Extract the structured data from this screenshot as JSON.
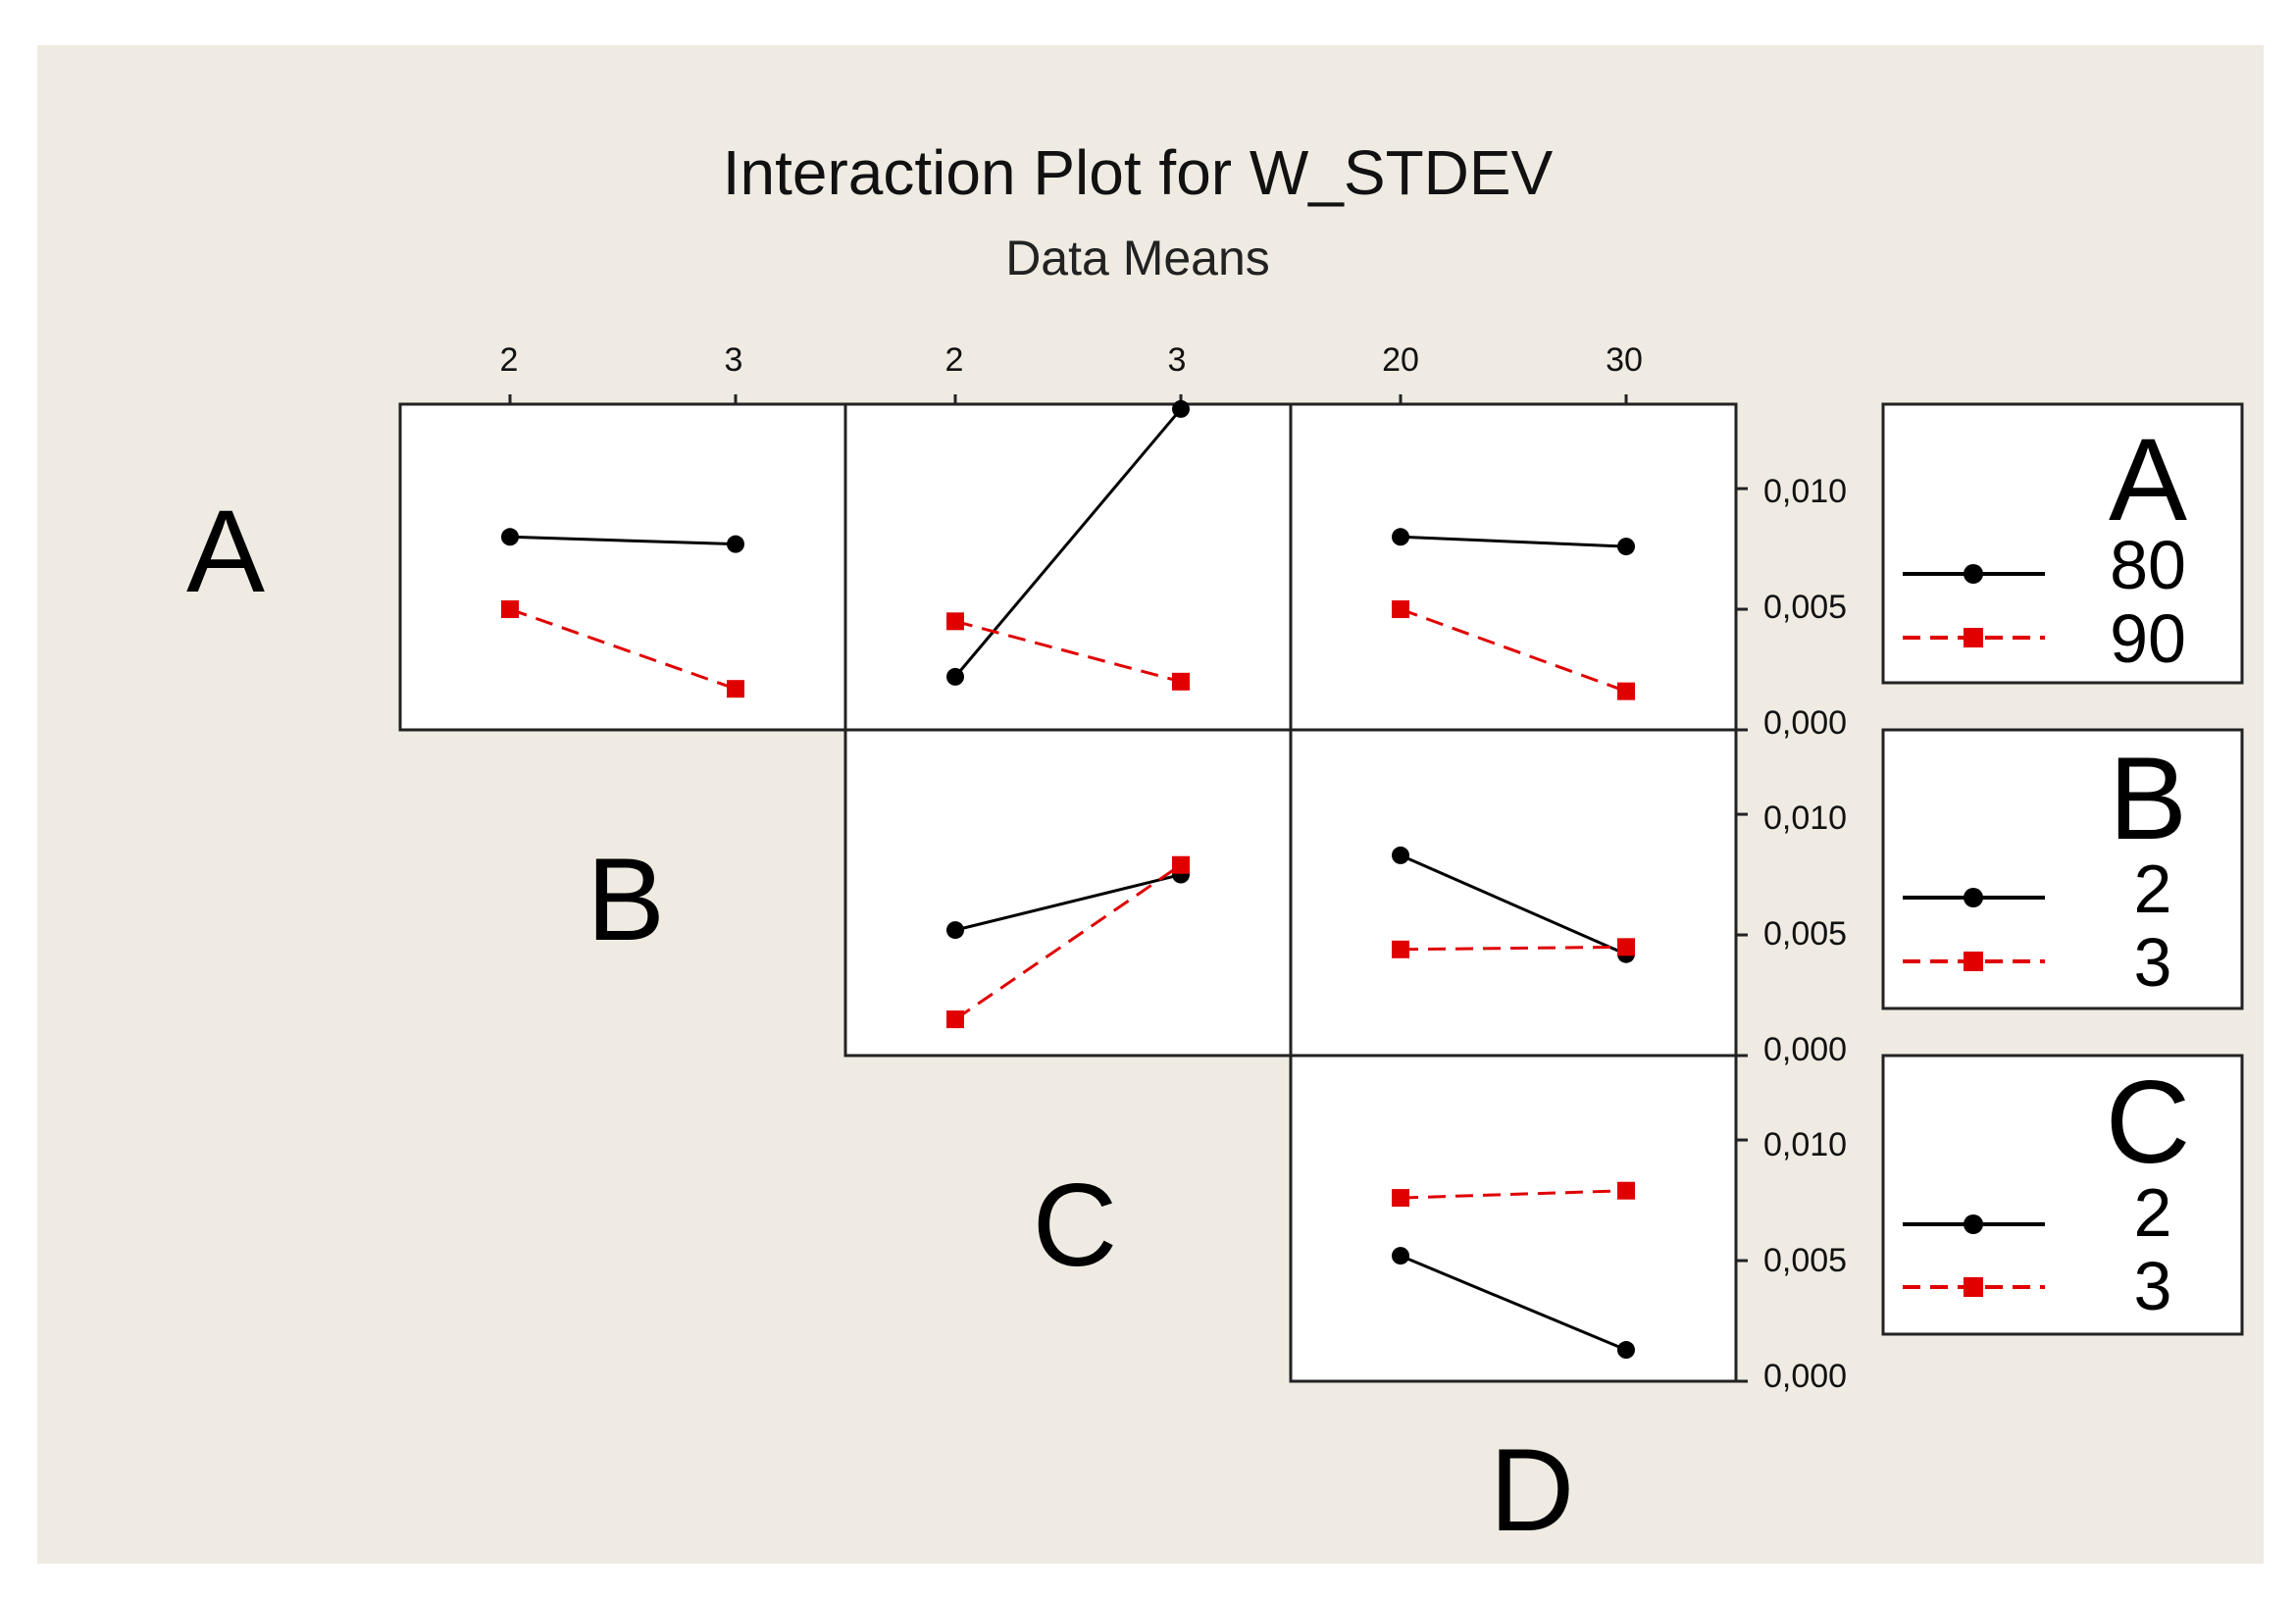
{
  "colors": {
    "background": "#ffffff",
    "panel_area": "#efebe2",
    "series_low": "#000000",
    "series_high": "#e00000"
  },
  "chart_data": {
    "type": "line",
    "title": "Interaction Plot for W_STDEV",
    "subtitle": "Data Means",
    "factors": [
      "A",
      "B",
      "C",
      "D"
    ],
    "column_tick_labels": [
      [
        "2",
        "3"
      ],
      [
        "2",
        "3"
      ],
      [
        "20",
        "30"
      ]
    ],
    "y_tick_labels": [
      "0,010",
      "0,005",
      "0,000"
    ],
    "y_tick_values": [
      0.01,
      0.005,
      0.0
    ],
    "ylim": [
      0.0,
      0.0135
    ],
    "legends": [
      {
        "factor": "A",
        "levels": [
          "80",
          "90"
        ]
      },
      {
        "factor": "B",
        "levels": [
          "2",
          "3"
        ]
      },
      {
        "factor": "C",
        "levels": [
          "2",
          "3"
        ]
      }
    ],
    "panels": [
      {
        "row_factor": "A",
        "col_factor": "B",
        "x": [
          "2",
          "3"
        ],
        "series": [
          {
            "name": "80",
            "values": [
              0.008,
              0.0077
            ]
          },
          {
            "name": "90",
            "values": [
              0.005,
              0.0017
            ]
          }
        ]
      },
      {
        "row_factor": "A",
        "col_factor": "C",
        "x": [
          "2",
          "3"
        ],
        "series": [
          {
            "name": "80",
            "values": [
              0.0022,
              0.0133
            ]
          },
          {
            "name": "90",
            "values": [
              0.0045,
              0.002
            ]
          }
        ]
      },
      {
        "row_factor": "A",
        "col_factor": "D",
        "x": [
          "20",
          "30"
        ],
        "series": [
          {
            "name": "80",
            "values": [
              0.008,
              0.0076
            ]
          },
          {
            "name": "90",
            "values": [
              0.005,
              0.0016
            ]
          }
        ]
      },
      {
        "row_factor": "B",
        "col_factor": "C",
        "x": [
          "2",
          "3"
        ],
        "series": [
          {
            "name": "2",
            "values": [
              0.0052,
              0.0075
            ]
          },
          {
            "name": "3",
            "values": [
              0.0015,
              0.0079
            ]
          }
        ]
      },
      {
        "row_factor": "B",
        "col_factor": "D",
        "x": [
          "20",
          "30"
        ],
        "series": [
          {
            "name": "2",
            "values": [
              0.0083,
              0.0042
            ]
          },
          {
            "name": "3",
            "values": [
              0.0044,
              0.0045
            ]
          }
        ]
      },
      {
        "row_factor": "C",
        "col_factor": "D",
        "x": [
          "20",
          "30"
        ],
        "series": [
          {
            "name": "2",
            "values": [
              0.0052,
              0.0013
            ]
          },
          {
            "name": "3",
            "values": [
              0.0076,
              0.0079
            ]
          }
        ]
      }
    ]
  }
}
